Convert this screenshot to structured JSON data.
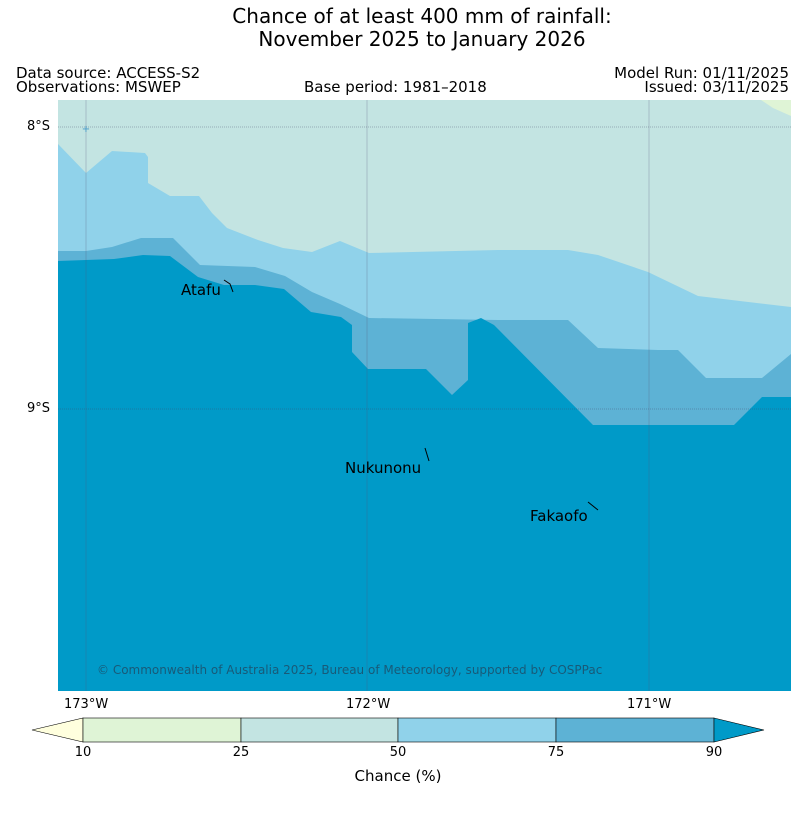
{
  "title": {
    "line1": "Chance of at least 400 mm of rainfall:",
    "line2": "November 2025 to January 2026"
  },
  "meta": {
    "data_source": "Data source: ACCESS-S2",
    "observations": "Observations: MSWEP",
    "base_period": "Base period: 1981–2018",
    "model_run": "Model Run: 01/11/2025",
    "issued": "Issued: 03/11/2025"
  },
  "map": {
    "lat_labels": [
      "8°S",
      "9°S"
    ],
    "lon_labels": [
      "173°W",
      "172°W",
      "171°W"
    ],
    "places": [
      "Atafu",
      "Nukunonu",
      "Fakaofo"
    ],
    "copyright": "© Commonwealth of Australia 2025, Bureau of Meteorology, supported by COSPPac"
  },
  "colorbar": {
    "label": "Chance (%)",
    "ticks": [
      "10",
      "25",
      "50",
      "75",
      "90"
    ],
    "colors": [
      "#ffffde",
      "#dff4d6",
      "#c3e4e2",
      "#90d2ea",
      "#5db2d5",
      "#009ac8"
    ]
  }
}
